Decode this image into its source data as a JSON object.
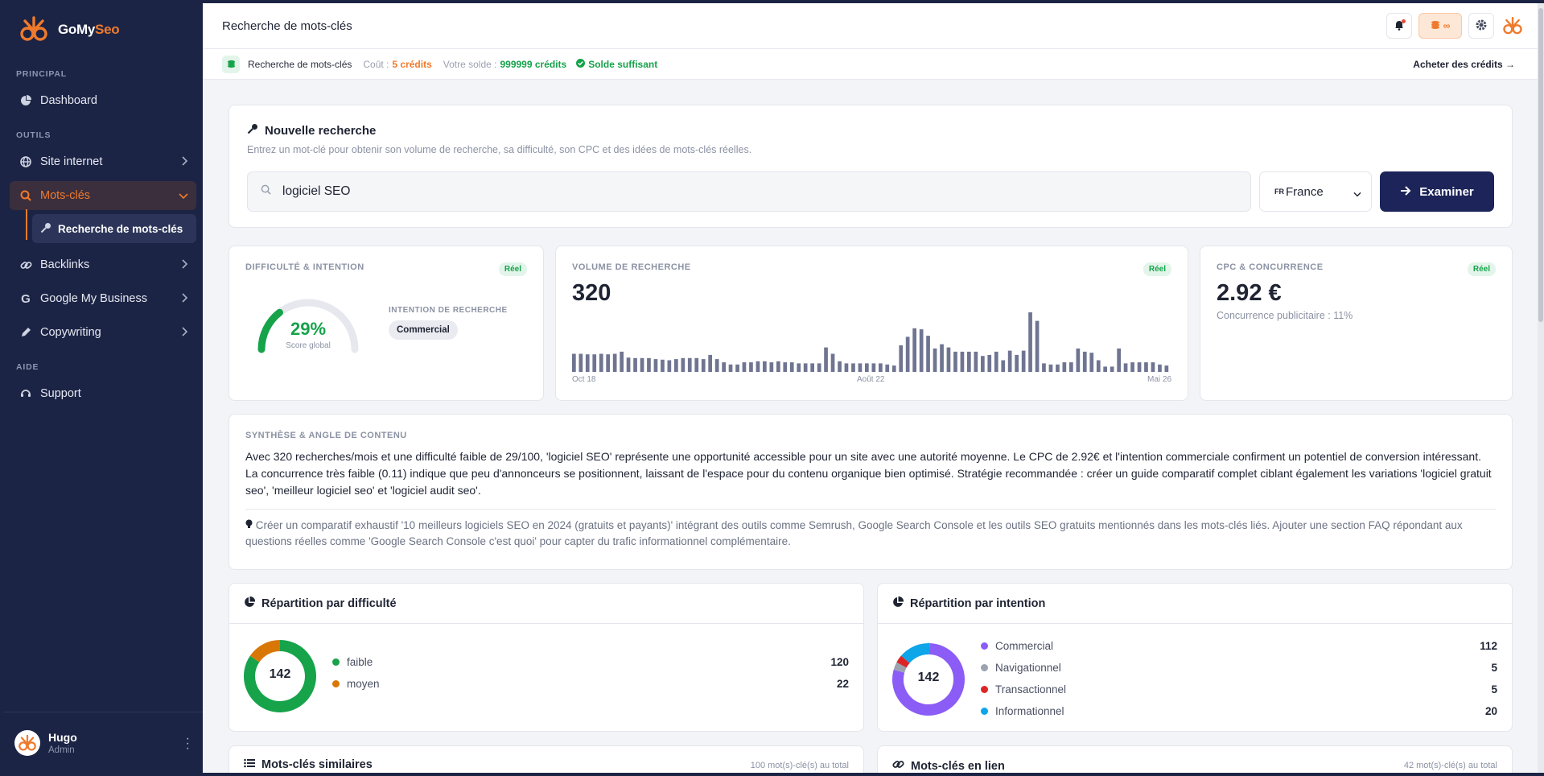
{
  "brand": {
    "name_part1": "GoMy",
    "name_part2": "Seo",
    "color": "#f07a2c"
  },
  "sidebar": {
    "sections": {
      "principal": "PRINCIPAL",
      "outils": "OUTILS",
      "aide": "AIDE"
    },
    "items": {
      "dashboard": "Dashboard",
      "site": "Site internet",
      "motscles": "Mots-clés",
      "recherche": "Recherche de mots-clés",
      "backlinks": "Backlinks",
      "gmb": "Google My Business",
      "copywriting": "Copywriting",
      "support": "Support"
    },
    "user": {
      "name": "Hugo",
      "role": "Admin"
    }
  },
  "header": {
    "title": "Recherche de mots-clés",
    "credits_chip": "∞"
  },
  "creditbar": {
    "label": "Recherche de mots-clés",
    "cost_label": "Coût :",
    "cost_value": "5 crédits",
    "balance_label": "Votre solde :",
    "balance_value": "999999 crédits",
    "status": "Solde suffisant",
    "buy_link": "Acheter des crédits →"
  },
  "search": {
    "title": "Nouvelle recherche",
    "subtitle": "Entrez un mot-clé pour obtenir son volume de recherche, sa difficulté, son CPC et des idées de mots-clés réelles.",
    "query": "logiciel SEO",
    "country_flag": "FR",
    "country": "France",
    "button": "Examiner"
  },
  "metrics": {
    "difficulty": {
      "label": "DIFFICULTÉ & INTENTION",
      "badge": "Réel",
      "value_pct": 29,
      "value_text": "29%",
      "score_label": "Score global",
      "intent_label": "INTENTION DE RECHERCHE",
      "intent": "Commercial"
    },
    "volume": {
      "label": "VOLUME DE RECHERCHE",
      "badge": "Réel",
      "value": "320",
      "axis": [
        "Oct 18",
        "Août 22",
        "Mai 26"
      ]
    },
    "cpc": {
      "label": "CPC & CONCURRENCE",
      "badge": "Réel",
      "value": "2.92 €",
      "competition": "Concurrence publicitaire : 11%"
    }
  },
  "chart_data": {
    "type": "bar",
    "title": "VOLUME DE RECHERCHE",
    "x_tick_labels": [
      "Oct 18",
      "Août 22",
      "Mai 26"
    ],
    "values": [
      170,
      170,
      165,
      165,
      170,
      165,
      170,
      190,
      135,
      130,
      130,
      130,
      120,
      115,
      110,
      120,
      130,
      130,
      130,
      120,
      160,
      120,
      90,
      70,
      70,
      90,
      90,
      100,
      100,
      90,
      100,
      90,
      90,
      80,
      80,
      80,
      80,
      230,
      170,
      100,
      80,
      80,
      80,
      80,
      80,
      80,
      70,
      60,
      250,
      330,
      410,
      400,
      340,
      220,
      260,
      230,
      190,
      190,
      190,
      190,
      150,
      160,
      190,
      110,
      200,
      160,
      200,
      560,
      480,
      80,
      70,
      70,
      90,
      90,
      220,
      190,
      180,
      110,
      50,
      50,
      220,
      80,
      90,
      90,
      90,
      90,
      70,
      60
    ]
  },
  "synthesis": {
    "label": "SYNTHÈSE & ANGLE DE CONTENU",
    "text": "Avec 320 recherches/mois et une difficulté faible de 29/100, 'logiciel SEO' représente une opportunité accessible pour un site avec une autorité moyenne. Le CPC de 2.92€ et l'intention commerciale confirment un potentiel de conversion intéressant. La concurrence très faible (0.11) indique que peu d'annonceurs se positionnent, laissant de l'espace pour du contenu organique bien optimisé. Stratégie recommandée : créer un guide comparatif complet ciblant également les variations 'logiciel gratuit seo', 'meilleur logiciel seo' et 'logiciel audit seo'.",
    "tip": "Créer un comparatif exhaustif '10 meilleurs logiciels SEO en 2024 (gratuits et payants)' intégrant des outils comme Semrush, Google Search Console et les outils SEO gratuits mentionnés dans les mots-clés liés. Ajouter une section FAQ répondant aux questions réelles comme 'Google Search Console c'est quoi' pour capter du trafic informationnel complémentaire."
  },
  "difficulty_split": {
    "title": "Répartition par difficulté",
    "total": "142",
    "items": [
      {
        "label": "faible",
        "value": "120",
        "color": "#16a34a"
      },
      {
        "label": "moyen",
        "value": "22",
        "color": "#d97706"
      }
    ]
  },
  "intent_split": {
    "title": "Répartition par intention",
    "total": "142",
    "items": [
      {
        "label": "Commercial",
        "value": "112",
        "color": "#8b5cf6"
      },
      {
        "label": "Navigationnel",
        "value": "5",
        "color": "#9ca3af"
      },
      {
        "label": "Transactionnel",
        "value": "5",
        "color": "#dc2626"
      },
      {
        "label": "Informationnel",
        "value": "20",
        "color": "#0ea5e9"
      }
    ]
  },
  "similar": {
    "title": "Mots-clés similaires",
    "count": "100 mot(s)-clé(s) au total"
  },
  "related": {
    "title": "Mots-clés en lien",
    "count": "42 mot(s)-clé(s) au total"
  }
}
